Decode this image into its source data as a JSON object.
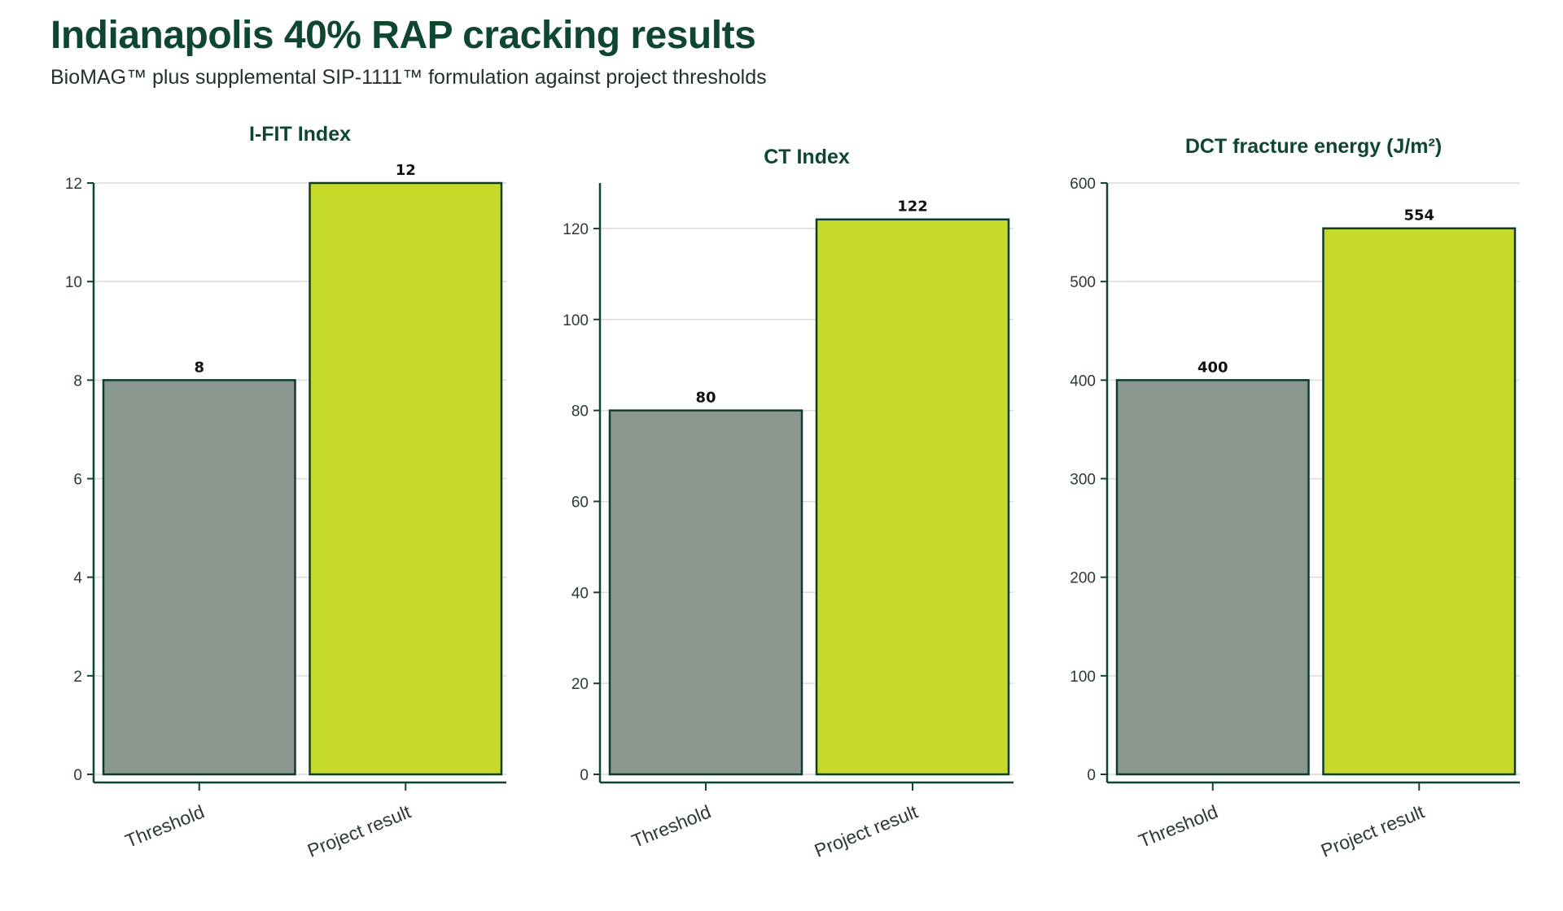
{
  "page": {
    "title": "Indianapolis 40% RAP cracking results",
    "subtitle": "BioMAG™ plus supplemental SIP-1111™ formulation against project thresholds"
  },
  "colors": {
    "title": "#0f4630",
    "axis": "#0f4630",
    "threshold_bar": "#8b9890",
    "result_bar": "#c6da2c",
    "bar_outline": "#0f3d2a",
    "grid": "#d9dcda"
  },
  "chart_data": [
    {
      "type": "bar",
      "title": "I-FIT Index",
      "categories": [
        "Threshold",
        "Project result"
      ],
      "values": [
        8,
        12
      ],
      "ylim": [
        0,
        12
      ],
      "yticks": [
        0,
        2,
        4,
        6,
        8,
        10,
        12
      ],
      "grid": true
    },
    {
      "type": "bar",
      "title": "CT Index",
      "categories": [
        "Threshold",
        "Project result"
      ],
      "values": [
        80,
        122
      ],
      "ylim": [
        0,
        130
      ],
      "yticks": [
        0,
        20,
        40,
        60,
        80,
        100,
        120
      ],
      "grid": true
    },
    {
      "type": "bar",
      "title": "DCT fracture energy (J/m²)",
      "categories": [
        "Threshold",
        "Project result"
      ],
      "values": [
        400,
        554
      ],
      "ylim": [
        0,
        600
      ],
      "yticks": [
        0,
        100,
        200,
        300,
        400,
        500,
        600
      ],
      "grid": true
    }
  ]
}
